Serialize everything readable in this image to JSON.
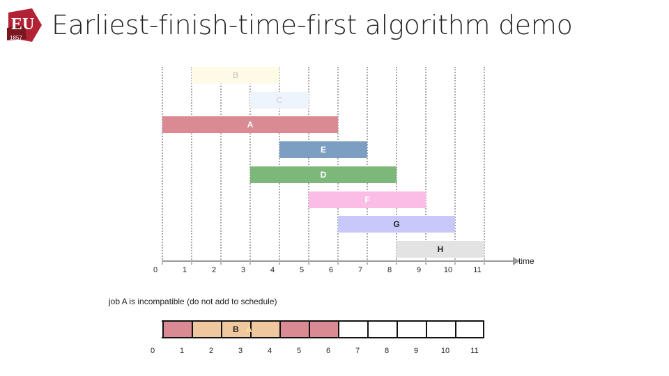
{
  "header": {
    "logo_text": "EU",
    "logo_year": "1857",
    "title": "Earliest-finish-time-first algorithm demo"
  },
  "jobs": [
    {
      "name": "B",
      "start": 1,
      "finish": 4,
      "color": "#fffbe6",
      "label_color": "#bdbdbd",
      "faded": true
    },
    {
      "name": "C",
      "start": 3,
      "finish": 5,
      "color": "#eef4fb",
      "label_color": "#c8c8c8",
      "faded": true
    },
    {
      "name": "A",
      "start": 0,
      "finish": 6,
      "color": "#d98a92",
      "label_color": "#ffffff",
      "faded": false
    },
    {
      "name": "E",
      "start": 4,
      "finish": 7,
      "color": "#7b9ec2",
      "label_color": "#ffffff",
      "faded": false
    },
    {
      "name": "D",
      "start": 3,
      "finish": 8,
      "color": "#7db87a",
      "label_color": "#ffffff",
      "faded": false
    },
    {
      "name": "F",
      "start": 5,
      "finish": 9,
      "color": "#fbbde6",
      "label_color": "#ffffff",
      "faded": false
    },
    {
      "name": "G",
      "start": 6,
      "finish": 10,
      "color": "#c8c8fb",
      "label_color": "#222222",
      "faded": false
    },
    {
      "name": "H",
      "start": 8,
      "finish": 11,
      "color": "#e3e3e3",
      "label_color": "#222222",
      "faded": false
    }
  ],
  "axis": {
    "ticks": [
      "0",
      "1",
      "2",
      "3",
      "4",
      "5",
      "6",
      "7",
      "8",
      "9",
      "10",
      "11"
    ],
    "label": "time"
  },
  "status_text": "job A is incompatible (do not add to schedule)",
  "schedule": {
    "segments": [
      {
        "start": 0,
        "finish": 1,
        "color": "#d98a92"
      },
      {
        "start": 1,
        "finish": 4,
        "color": "#f0c8a0"
      },
      {
        "start": 4,
        "finish": 6,
        "color": "#d98a92"
      }
    ],
    "labels": [
      {
        "text": "B",
        "at": 2.5,
        "color": "#222222"
      },
      {
        "text": "A",
        "at": 2.95,
        "color": "#f7e08a"
      }
    ],
    "ticks": [
      "0",
      "1",
      "2",
      "3",
      "4",
      "5",
      "6",
      "7",
      "8",
      "9",
      "10",
      "11"
    ]
  },
  "colors": {
    "logo_red": "#b22234",
    "axis": "#9a9a9a"
  }
}
